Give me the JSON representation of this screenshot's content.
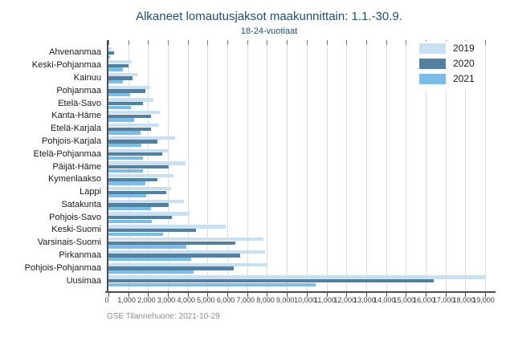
{
  "header": {
    "title": "Alkaneet lomautusjaksot maakunnittain: 1.1.-30.9.",
    "subtitle": "18-24-vuotiaat"
  },
  "footer": {
    "source": "GSE Tilannehuone: 2021-10-29"
  },
  "colors": {
    "title_text": "#1f4e79",
    "series_2019": "#c9e0f2",
    "series_2020": "#53809e",
    "series_2021": "#7cbde8",
    "gridline": "#dcdcdc",
    "axis": "#4d4d4d",
    "source_text": "#8c8c8c"
  },
  "chart_data": {
    "type": "bar",
    "orientation": "horizontal",
    "title": "Alkaneet lomautusjaksot maakunnittain: 1.1.-30.9.",
    "subtitle": "18-24-vuotiaat",
    "grid": true,
    "legend_position": "top-right",
    "xlim": [
      0,
      19000
    ],
    "x_tick_step": 1000,
    "x_tick_labels": [
      "0",
      "1,000",
      "2,000",
      "3,000",
      "4,000",
      "5,000",
      "6,000",
      "7,000",
      "8,000",
      "9,000",
      "10,000",
      "11,000",
      "12,000",
      "13,000",
      "14,000",
      "15,000",
      "16,000",
      "17,000",
      "18,000",
      "19,000"
    ],
    "categories": [
      "Ahvenanmaa",
      "Keski-Pohjanmaa",
      "Kainuu",
      "Pohjanmaa",
      "Etelä-Savo",
      "Kanta-Häme",
      "Etelä-Karjala",
      "Pohjois-Karjala",
      "Etelä-Pohjanmaa",
      "Päijät-Häme",
      "Kymenlaakso",
      "Lappi",
      "Satakunta",
      "Pohjois-Savo",
      "Keski-Suomi",
      "Varsinais-Suomi",
      "Pirkanmaa",
      "Pohjois-Pohjanmaa",
      "Uusimaa"
    ],
    "series": [
      {
        "name": "2019",
        "color": "#c9e0f2",
        "values": [
          180,
          1170,
          1450,
          2100,
          2250,
          2600,
          2540,
          3380,
          3000,
          3870,
          3290,
          3150,
          3810,
          4100,
          5920,
          7830,
          7900,
          8000,
          19000
        ]
      },
      {
        "name": "2020",
        "color": "#53809e",
        "values": [
          280,
          1000,
          1200,
          1850,
          1750,
          2130,
          2130,
          2470,
          2700,
          3020,
          2470,
          2920,
          3020,
          3220,
          4430,
          6400,
          6640,
          6340,
          16400
        ]
      },
      {
        "name": "2021",
        "color": "#7cbde8",
        "values": [
          80,
          720,
          740,
          1100,
          1150,
          1310,
          1620,
          1650,
          1760,
          1750,
          1860,
          1920,
          2160,
          2170,
          2760,
          3940,
          4170,
          4310,
          10460
        ]
      }
    ]
  }
}
